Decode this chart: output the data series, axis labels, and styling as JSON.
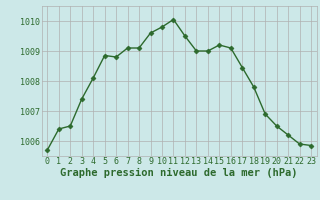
{
  "x": [
    0,
    1,
    2,
    3,
    4,
    5,
    6,
    7,
    8,
    9,
    10,
    11,
    12,
    13,
    14,
    15,
    16,
    17,
    18,
    19,
    20,
    21,
    22,
    23
  ],
  "y": [
    1005.7,
    1006.4,
    1006.5,
    1007.4,
    1008.1,
    1008.85,
    1008.8,
    1009.1,
    1009.1,
    1009.6,
    1009.8,
    1010.05,
    1009.5,
    1009.0,
    1009.0,
    1009.2,
    1009.1,
    1008.45,
    1007.8,
    1006.9,
    1006.5,
    1006.2,
    1005.9,
    1005.85
  ],
  "line_color": "#2d6a2d",
  "marker": "D",
  "markersize": 2.5,
  "bg_color": "#cce8e8",
  "grid_color": "#b0b0b0",
  "xlabel": "Graphe pression niveau de la mer (hPa)",
  "ylim": [
    1005.5,
    1010.5
  ],
  "yticks": [
    1006,
    1007,
    1008,
    1009,
    1010
  ],
  "xticks": [
    0,
    1,
    2,
    3,
    4,
    5,
    6,
    7,
    8,
    9,
    10,
    11,
    12,
    13,
    14,
    15,
    16,
    17,
    18,
    19,
    20,
    21,
    22,
    23
  ],
  "xlabel_fontsize": 7.5,
  "tick_fontsize": 6.0,
  "linewidth": 1.0
}
